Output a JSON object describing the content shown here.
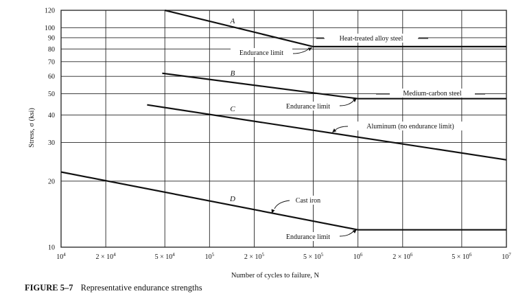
{
  "figure": {
    "caption_label": "FIGURE 5–7",
    "caption_text": "Representative endurance strengths"
  },
  "chart_data": {
    "type": "line",
    "xlabel": "Number of cycles to failure, N",
    "ylabel": "Stress, σ (ksi)",
    "xscale": "log",
    "yscale": "log",
    "xlim": [
      10000,
      10000000
    ],
    "ylim": [
      10,
      120
    ],
    "grid": true,
    "x_ticks": [
      {
        "value": 10000,
        "base": "10",
        "exp": "4"
      },
      {
        "value": 20000,
        "base": "2 × 10",
        "exp": "4"
      },
      {
        "value": 50000,
        "base": "5 × 10",
        "exp": "4"
      },
      {
        "value": 100000,
        "base": "10",
        "exp": "5"
      },
      {
        "value": 200000,
        "base": "2 × 10",
        "exp": "5"
      },
      {
        "value": 500000,
        "base": "5 × 10",
        "exp": "5"
      },
      {
        "value": 1000000,
        "base": "10",
        "exp": "6"
      },
      {
        "value": 2000000,
        "base": "2 × 10",
        "exp": "6"
      },
      {
        "value": 5000000,
        "base": "5 × 10",
        "exp": "6"
      },
      {
        "value": 10000000,
        "base": "10",
        "exp": "7"
      }
    ],
    "y_ticks": [
      10,
      20,
      30,
      40,
      50,
      60,
      70,
      80,
      90,
      100,
      120
    ],
    "series": [
      {
        "name": "A",
        "label": "Heat-treated alloy steel",
        "points": [
          [
            50000,
            120
          ],
          [
            500000,
            82
          ],
          [
            10000000,
            82
          ]
        ],
        "endurance_label": "Endurance limit"
      },
      {
        "name": "B",
        "label": "Medium-carbon steel",
        "points": [
          [
            48000,
            62
          ],
          [
            1000000,
            47.5
          ],
          [
            10000000,
            47.5
          ]
        ],
        "endurance_label": "Endurance limit"
      },
      {
        "name": "C",
        "label": "Aluminum (no endurance limit)",
        "points": [
          [
            38000,
            44.5
          ],
          [
            10000000,
            25
          ]
        ]
      },
      {
        "name": "D",
        "label": "Cast iron",
        "points": [
          [
            10000,
            22
          ],
          [
            1000000,
            12
          ],
          [
            10000000,
            12
          ]
        ],
        "endurance_label": "Endurance limit"
      }
    ]
  }
}
